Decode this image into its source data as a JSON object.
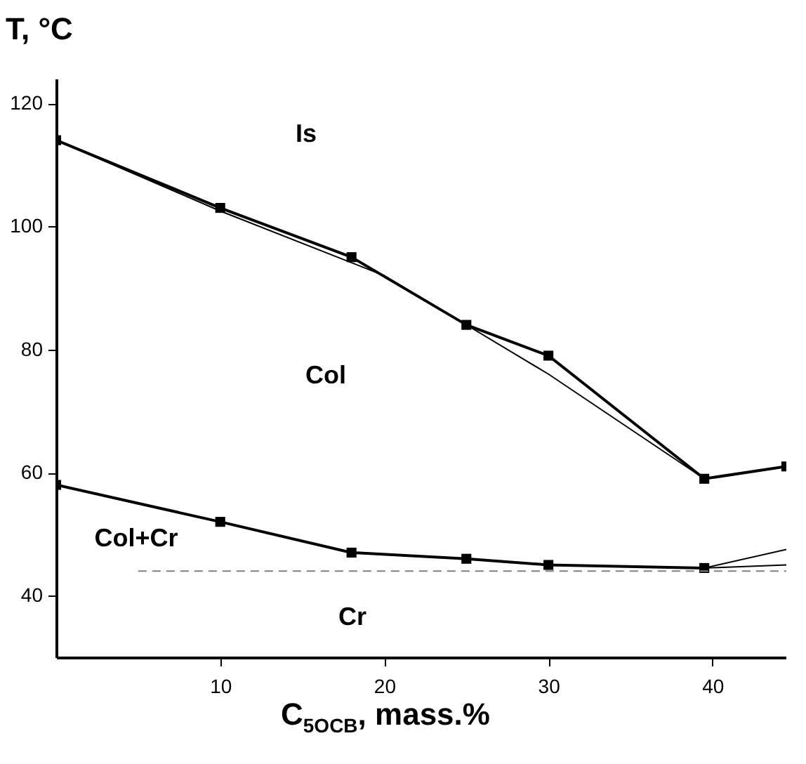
{
  "chart_data": {
    "type": "line",
    "xlabel": "C$_{5OCB}$, mass.%",
    "ylabel": "T, °C",
    "xlim": [
      0,
      44.5
    ],
    "xticks": [
      10,
      20,
      30,
      40
    ],
    "ylim": [
      30,
      124
    ],
    "yticks": [
      40,
      60,
      80,
      100,
      120
    ],
    "grid": false,
    "series": [
      {
        "color": "#000000",
        "marker": "square",
        "x": [
          0,
          10,
          18,
          25,
          30,
          39.5,
          44.5
        ],
        "values": [
          114,
          103,
          95,
          84,
          79,
          59,
          61
        ]
      },
      {
        "color": "#000000",
        "marker": "none",
        "x": [
          0,
          10,
          20,
          30,
          39.5
        ],
        "values": [
          114,
          102.5,
          92,
          76,
          59
        ]
      },
      {
        "color": "#000000",
        "marker": "square",
        "x": [
          0,
          10,
          18,
          25,
          30,
          39.5
        ],
        "values": [
          58,
          52,
          47,
          46,
          45,
          44.5
        ]
      },
      {
        "color": "#000000",
        "marker": "none",
        "x": [
          39.5,
          44.5
        ],
        "values": [
          44.5,
          47.5
        ]
      },
      {
        "color": "#000000",
        "marker": "none",
        "x": [
          39.5,
          44.5
        ],
        "values": [
          44.5,
          45
        ]
      },
      {
        "color": "#808080",
        "marker": "none",
        "line_style": "dashed",
        "x": [
          5,
          44.5
        ],
        "values": [
          44,
          44
        ]
      }
    ],
    "annotations": [
      "Is",
      "Col",
      "Col+Cr",
      "Cr"
    ]
  }
}
